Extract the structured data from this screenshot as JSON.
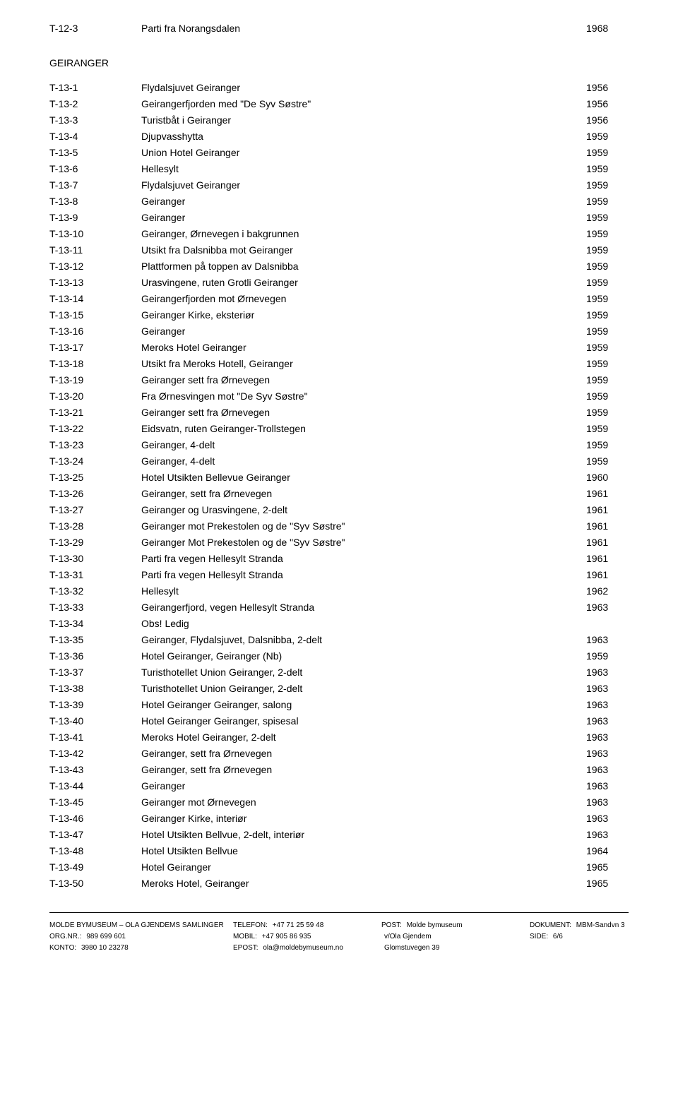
{
  "top_row": {
    "id": "T-12-3",
    "desc": "Parti fra Norangsdalen",
    "year": "1968"
  },
  "section": "GEIRANGER",
  "rows": [
    {
      "id": "T-13-1",
      "desc": "Flydalsjuvet Geiranger",
      "year": "1956"
    },
    {
      "id": "T-13-2",
      "desc": "Geirangerfjorden med \"De Syv Søstre\"",
      "year": "1956"
    },
    {
      "id": "T-13-3",
      "desc": "Turistbåt i Geiranger",
      "year": "1956"
    },
    {
      "id": "T-13-4",
      "desc": "Djupvasshytta",
      "year": "1959"
    },
    {
      "id": "T-13-5",
      "desc": "Union Hotel Geiranger",
      "year": "1959"
    },
    {
      "id": "T-13-6",
      "desc": "Hellesylt",
      "year": "1959"
    },
    {
      "id": "T-13-7",
      "desc": "Flydalsjuvet Geiranger",
      "year": "1959"
    },
    {
      "id": "T-13-8",
      "desc": "Geiranger",
      "year": "1959"
    },
    {
      "id": "T-13-9",
      "desc": "Geiranger",
      "year": "1959"
    },
    {
      "id": "T-13-10",
      "desc": "Geiranger, Ørnevegen i bakgrunnen",
      "year": "1959"
    },
    {
      "id": "T-13-11",
      "desc": "Utsikt fra Dalsnibba mot Geiranger",
      "year": "1959"
    },
    {
      "id": "T-13-12",
      "desc": "Plattformen på toppen av Dalsnibba",
      "year": "1959"
    },
    {
      "id": "T-13-13",
      "desc": "Urasvingene, ruten Grotli Geiranger",
      "year": "1959"
    },
    {
      "id": "T-13-14",
      "desc": "Geirangerfjorden mot Ørnevegen",
      "year": "1959"
    },
    {
      "id": "T-13-15",
      "desc": "Geiranger Kirke, eksteriør",
      "year": "1959"
    },
    {
      "id": "T-13-16",
      "desc": "Geiranger",
      "year": "1959"
    },
    {
      "id": "T-13-17",
      "desc": "Meroks Hotel Geiranger",
      "year": "1959"
    },
    {
      "id": "T-13-18",
      "desc": "Utsikt fra Meroks Hotell, Geiranger",
      "year": "1959"
    },
    {
      "id": "T-13-19",
      "desc": "Geiranger sett fra Ørnevegen",
      "year": "1959"
    },
    {
      "id": "T-13-20",
      "desc": "Fra Ørnesvingen mot \"De Syv Søstre\"",
      "year": "1959"
    },
    {
      "id": "T-13-21",
      "desc": "Geiranger sett fra Ørnevegen",
      "year": "1959"
    },
    {
      "id": "T-13-22",
      "desc": "Eidsvatn, ruten Geiranger-Trollstegen",
      "year": "1959"
    },
    {
      "id": "T-13-23",
      "desc": "Geiranger, 4-delt",
      "year": "1959"
    },
    {
      "id": "T-13-24",
      "desc": "Geiranger, 4-delt",
      "year": "1959"
    },
    {
      "id": "T-13-25",
      "desc": "Hotel Utsikten Bellevue Geiranger",
      "year": "1960"
    },
    {
      "id": "T-13-26",
      "desc": "Geiranger, sett fra Ørnevegen",
      "year": "1961"
    },
    {
      "id": "T-13-27",
      "desc": "Geiranger og Urasvingene, 2-delt",
      "year": "1961"
    },
    {
      "id": "T-13-28",
      "desc": "Geiranger mot Prekestolen og de \"Syv Søstre\"",
      "year": "1961"
    },
    {
      "id": "T-13-29",
      "desc": "Geiranger Mot Prekestolen og de \"Syv Søstre\"",
      "year": "1961"
    },
    {
      "id": "T-13-30",
      "desc": "Parti fra vegen Hellesylt Stranda",
      "year": "1961"
    },
    {
      "id": "T-13-31",
      "desc": "Parti fra vegen Hellesylt Stranda",
      "year": "1961"
    },
    {
      "id": "T-13-32",
      "desc": "Hellesylt",
      "year": "1962"
    },
    {
      "id": "T-13-33",
      "desc": "Geirangerfjord, vegen Hellesylt Stranda",
      "year": "1963"
    },
    {
      "id": "T-13-34",
      "desc": "Obs! Ledig",
      "year": ""
    },
    {
      "id": "T-13-35",
      "desc": "Geiranger, Flydalsjuvet, Dalsnibba, 2-delt",
      "year": "1963"
    },
    {
      "id": "T-13-36",
      "desc": "Hotel Geiranger, Geiranger (Nb)",
      "year": "1959"
    },
    {
      "id": "T-13-37",
      "desc": "Turisthotellet Union Geiranger, 2-delt",
      "year": "1963"
    },
    {
      "id": "T-13-38",
      "desc": "Turisthotellet Union Geiranger, 2-delt",
      "year": "1963"
    },
    {
      "id": "T-13-39",
      "desc": "Hotel Geiranger Geiranger, salong",
      "year": "1963"
    },
    {
      "id": "T-13-40",
      "desc": "Hotel Geiranger Geiranger, spisesal",
      "year": "1963"
    },
    {
      "id": "T-13-41",
      "desc": "Meroks Hotel Geiranger, 2-delt",
      "year": "1963"
    },
    {
      "id": "T-13-42",
      "desc": "Geiranger, sett fra Ørnevegen",
      "year": "1963"
    },
    {
      "id": "T-13-43",
      "desc": "Geiranger, sett fra Ørnevegen",
      "year": "1963"
    },
    {
      "id": "T-13-44",
      "desc": "Geiranger",
      "year": "1963"
    },
    {
      "id": "T-13-45",
      "desc": "Geiranger mot Ørnevegen",
      "year": "1963"
    },
    {
      "id": "T-13-46",
      "desc": "Geiranger Kirke, interiør",
      "year": "1963"
    },
    {
      "id": "T-13-47",
      "desc": "Hotel Utsikten Bellvue, 2-delt, interiør",
      "year": "1963"
    },
    {
      "id": "T-13-48",
      "desc": "Hotel Utsikten Bellvue",
      "year": "1964"
    },
    {
      "id": "T-13-49",
      "desc": "Hotel Geiranger",
      "year": "1965"
    },
    {
      "id": "T-13-50",
      "desc": "Meroks Hotel, Geiranger",
      "year": "1965"
    }
  ],
  "footer": {
    "r1": {
      "c1": "MOLDE BYMUSEUM – OLA GJENDEMS SAMLINGER",
      "c2l": "TELEFON:",
      "c2v": "+47 71 25 59 48",
      "c3l": "POST:",
      "c3v": "Molde bymuseum",
      "c4l": "DOKUMENT:",
      "c4v": "MBM-Sandvn 3"
    },
    "r2": {
      "c1l": "ORG.NR.:",
      "c1v": "989 699 601",
      "c2l": "MOBIL:",
      "c2v": "+47 905 86 935",
      "c3l": "",
      "c3v": "v/Ola Gjendem",
      "c4l": "SIDE:",
      "c4v": "6/6"
    },
    "r3": {
      "c1l": "KONTO:",
      "c1v": "3980 10 23278",
      "c2l": "EPOST:",
      "c2v": "ola@moldebymuseum.no",
      "c3l": "",
      "c3v": "Glomstuvegen 39",
      "c4l": "",
      "c4v": ""
    }
  }
}
